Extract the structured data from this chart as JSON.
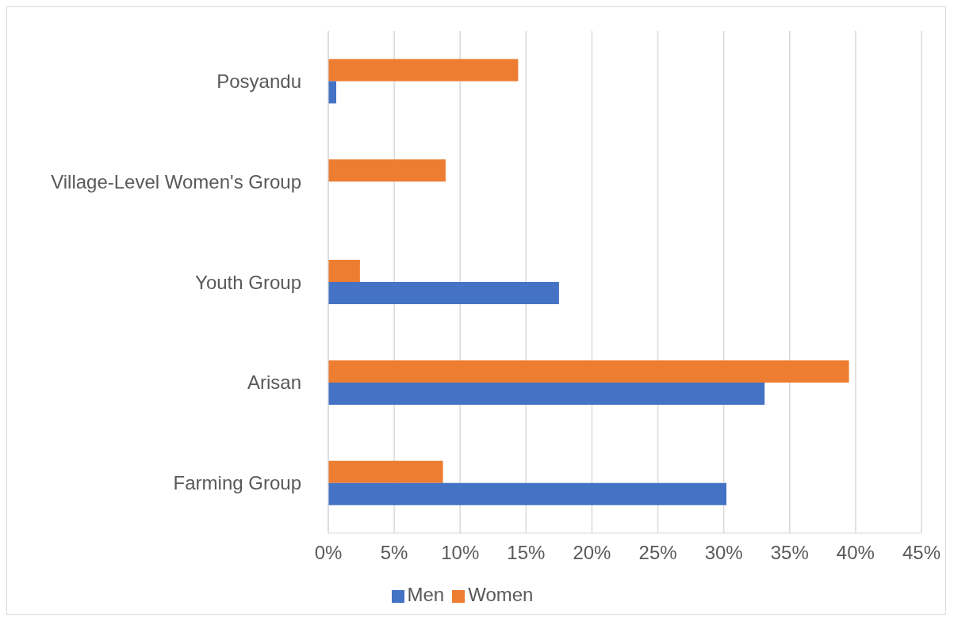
{
  "chart_data": {
    "type": "bar",
    "orientation": "horizontal",
    "categories": [
      "Posyandu",
      "Village-Level Women's Group",
      "Youth Group",
      "Arisan",
      "Farming Group"
    ],
    "series": [
      {
        "name": "Women",
        "color": "#ed7d31",
        "values": [
          14.4,
          8.9,
          2.4,
          39.5,
          8.7
        ]
      },
      {
        "name": "Men",
        "color": "#4472c4",
        "values": [
          0.6,
          null,
          17.5,
          33.1,
          30.2
        ]
      }
    ],
    "xlim": [
      0,
      45
    ],
    "xticks": [
      {
        "value": 0,
        "label": "0%"
      },
      {
        "value": 5,
        "label": "5%"
      },
      {
        "value": 10,
        "label": "10%"
      },
      {
        "value": 15,
        "label": "15%"
      },
      {
        "value": 20,
        "label": "20%"
      },
      {
        "value": 25,
        "label": "25%"
      },
      {
        "value": 30,
        "label": "30%"
      },
      {
        "value": 35,
        "label": "35%"
      },
      {
        "value": 40,
        "label": "40%"
      },
      {
        "value": 45,
        "label": "45%"
      }
    ],
    "grid": "x",
    "legend": "bottom"
  }
}
